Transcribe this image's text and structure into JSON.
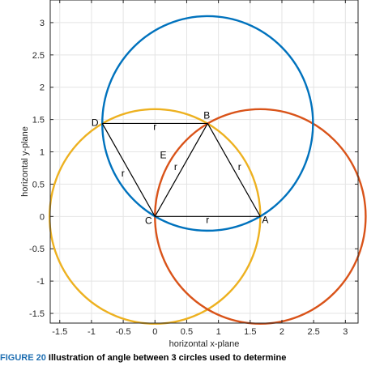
{
  "chart_data": {
    "type": "line",
    "xlabel": "horizontal x-plane",
    "ylabel": "horizontal y-plane",
    "xlim": [
      -1.65,
      3.2
    ],
    "ylim": [
      -1.65,
      3.35
    ],
    "xticks": [
      "-1.5",
      "-1",
      "-0.5",
      "0",
      "0.5",
      "1",
      "1.5",
      "2",
      "2.5",
      "3"
    ],
    "xtick_values": [
      -1.5,
      -1,
      -0.5,
      0,
      0.5,
      1,
      1.5,
      2,
      2.5,
      3
    ],
    "yticks": [
      "3",
      "2.5",
      "2",
      "1.5",
      "1",
      "0.5",
      "0",
      "-0.5",
      "-1",
      "-1.5"
    ],
    "ytick_values": [
      3,
      2.5,
      2,
      1.5,
      1,
      0.5,
      0,
      -0.5,
      -1,
      -1.5
    ],
    "grid": true,
    "circles": [
      {
        "center": [
          0.0,
          0.0
        ],
        "radius": 1.66,
        "color": "#EDB120"
      },
      {
        "center": [
          1.66,
          0.0
        ],
        "radius": 1.66,
        "color": "#D95319"
      },
      {
        "center": [
          0.83,
          1.44
        ],
        "radius": 1.66,
        "color": "#0072BD"
      }
    ],
    "points": [
      {
        "name": "A",
        "x": 1.66,
        "y": 0.0
      },
      {
        "name": "B",
        "x": 0.83,
        "y": 1.44
      },
      {
        "name": "C",
        "x": 0.0,
        "y": 0.0
      },
      {
        "name": "D",
        "x": -0.83,
        "y": 1.44
      }
    ],
    "segments": [
      {
        "from": "C",
        "to": "A",
        "label": "r"
      },
      {
        "from": "C",
        "to": "B",
        "label": "r"
      },
      {
        "from": "A",
        "to": "B",
        "label": "r"
      },
      {
        "from": "D",
        "to": "B",
        "label": "r"
      },
      {
        "from": "D",
        "to": "C",
        "label": "r"
      }
    ],
    "annotations": [
      {
        "text": "E",
        "x": 0.13,
        "y": 0.9
      }
    ]
  },
  "caption": {
    "figure_label": "FIGURE 20",
    "text": "Illustration of angle between 3 circles used to determine"
  }
}
